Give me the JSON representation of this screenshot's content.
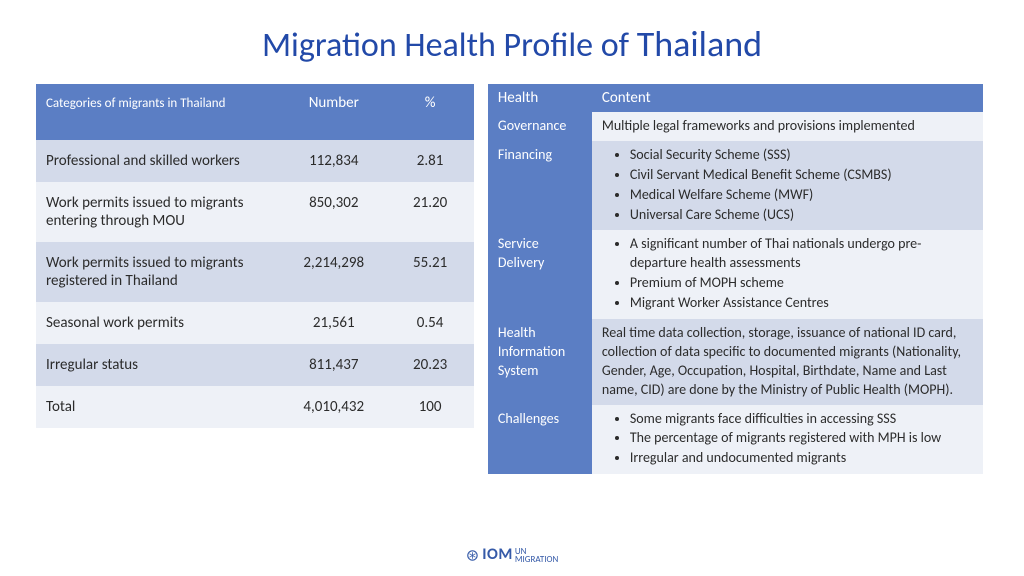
{
  "title_prefix": "Migration Health Profile of ",
  "title_country": "Thailand",
  "colors": {
    "title": "#2249a8",
    "header_bg": "#5B7EC4",
    "row_odd": "#d3daea",
    "row_even": "#eef1f7",
    "text": "#2b2b2b",
    "footer": "#355aa8"
  },
  "left": {
    "headers": {
      "cat": "Categories of migrants in Thailand",
      "num": "Number",
      "pct": "%"
    },
    "rows": [
      {
        "cat": "Professional and skilled workers",
        "num": "112,834",
        "pct": "2.81"
      },
      {
        "cat": "Work permits issued to migrants entering through MOU",
        "num": "850,302",
        "pct": "21.20"
      },
      {
        "cat": "Work permits issued to migrants registered in Thailand",
        "num": "2,214,298",
        "pct": "55.21"
      },
      {
        "cat": "Seasonal work permits",
        "num": "21,561",
        "pct": "0.54"
      },
      {
        "cat": "Irregular status",
        "num": "811,437",
        "pct": "20.23"
      },
      {
        "cat": "Total",
        "num": "4,010,432",
        "pct": "100"
      }
    ]
  },
  "right": {
    "headers": {
      "h1": "Health",
      "h2": "Content"
    },
    "rows": [
      {
        "label": "Governance",
        "type": "text",
        "text": "Multiple legal frameworks and provisions implemented"
      },
      {
        "label": "Financing",
        "type": "list",
        "items": [
          "Social Security Scheme (SSS)",
          "Civil Servant Medical Benefit Scheme (CSMBS)",
          "Medical Welfare Scheme (MWF)",
          "Universal Care Scheme (UCS)"
        ]
      },
      {
        "label": "Service Delivery",
        "type": "list",
        "items": [
          "A significant number of Thai nationals undergo pre-departure health assessments",
          "Premium of MOPH scheme",
          "Migrant Worker Assistance Centres"
        ]
      },
      {
        "label": "Health Information System",
        "type": "text",
        "text": "Real time data collection, storage, issuance of national ID card, collection of data specific to documented migrants (Nationality, Gender, Age, Occupation, Hospital, Birthdate, Name and Last name, CID) are done by the Ministry of Public Health (MOPH)."
      },
      {
        "label": "Challenges",
        "type": "list",
        "items": [
          "Some migrants face difficulties in accessing SSS",
          "The percentage of migrants registered with MPH is low",
          "Irregular and undocumented migrants"
        ]
      }
    ]
  },
  "footer": {
    "icon": "⊛",
    "main": "IOM",
    "sub1": "UN",
    "sub2": "MIGRATION"
  }
}
